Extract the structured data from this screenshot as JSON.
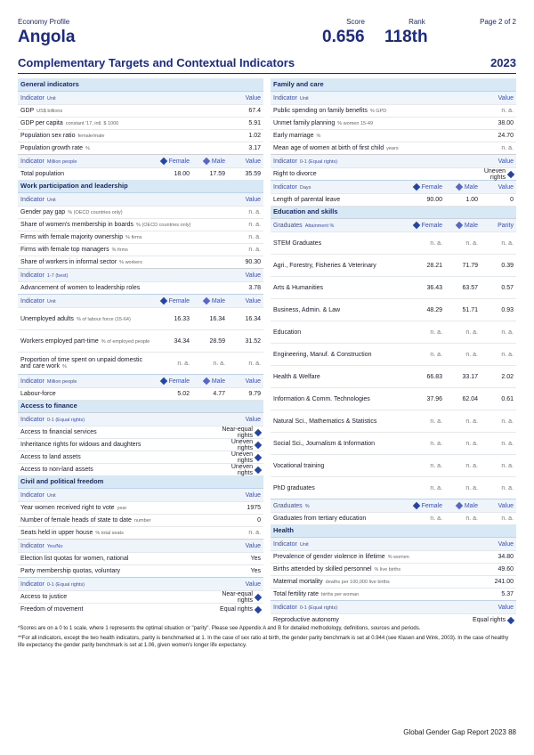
{
  "header": {
    "profile": "Economy Profile",
    "score_lab": "Score",
    "rank_lab": "Rank",
    "page": "Page 2 of 2",
    "country": "Angola",
    "score": "0.656",
    "rank": "118th"
  },
  "section": {
    "title": "Complementary Targets and Contextual Indicators",
    "year": "2023"
  },
  "left": {
    "general": {
      "title": "General indicators",
      "hdr": {
        "i": "Indicator",
        "u": "Unit",
        "v": "Value"
      },
      "rows": [
        [
          "GDP",
          "US$ billions",
          "67.4"
        ],
        [
          "GDP per capita",
          "constant '17, intl. $ 1000",
          "5.91"
        ],
        [
          "Population sex ratio",
          "female/male",
          "1.02"
        ],
        [
          "Population growth rate",
          "%",
          "3.17"
        ]
      ],
      "hdr2": {
        "i": "Indicator",
        "u": "Million people",
        "f": "Female",
        "m": "Male",
        "v": "Value"
      },
      "pop": [
        "Total population",
        "18.00",
        "17.59",
        "35.59"
      ]
    },
    "work": {
      "title": "Work participation and leadership",
      "hdr": {
        "i": "Indicator",
        "u": "Unit",
        "v": "Value"
      },
      "rows": [
        [
          "Gender pay gap",
          "% (OECD countries only)",
          "n. a."
        ],
        [
          "Share of women's membership in boards",
          "% (OECD countries only)",
          "n. a."
        ],
        [
          "Firms with female majority ownership",
          "% firms",
          "n. a."
        ],
        [
          "Firms with female top managers",
          "% firms",
          "n. a."
        ],
        [
          "Share of workers in informal sector",
          "% workers",
          "90.30"
        ]
      ],
      "hdr17": {
        "i": "Indicator",
        "u": "1-7 (best)",
        "v": "Value"
      },
      "adv": [
        "Advancement of women to leadership roles",
        "3.78"
      ],
      "hdr3": {
        "i": "Indicator",
        "u": "Unit",
        "f": "Female",
        "m": "Male",
        "v": "Value"
      },
      "unemp": [
        "Unemployed adults",
        "% of labour force (15-64)",
        "16.33",
        "16.34",
        "16.34"
      ],
      "part": [
        "Workers employed part-time",
        "% of employed people",
        "34.34",
        "28.59",
        "31.52"
      ],
      "unpaid": [
        "Proportion of time spent on unpaid domestic and care work",
        "%",
        "n. a.",
        "n. a.",
        "n. a."
      ],
      "hdr4": {
        "i": "Indicator",
        "u": "Million people",
        "f": "Female",
        "m": "Male",
        "v": "Value"
      },
      "labour": [
        "Labour-force",
        "5.02",
        "4.77",
        "9.79"
      ]
    },
    "finance": {
      "title": "Access to finance",
      "hdr": {
        "i": "Indicator",
        "u": "0-1 (Equal rights)",
        "v": "Value"
      },
      "rows": [
        [
          "Access to financial services",
          "Near-equal rights"
        ],
        [
          "Inheritance rights for widows and daughters",
          "Uneven rights"
        ],
        [
          "Access to land assets",
          "Uneven rights"
        ],
        [
          "Access to non-land assets",
          "Uneven rights"
        ]
      ]
    },
    "civil": {
      "title": "Civil and political freedom",
      "hdr": {
        "i": "Indicator",
        "u": "Unit",
        "v": "Value"
      },
      "rows": [
        [
          "Year women received right to vote",
          "year",
          "1975"
        ],
        [
          "Number of female heads of state to date",
          "number",
          "0"
        ],
        [
          "Seats held in upper house",
          "% total seats",
          "n. a."
        ]
      ],
      "hdr2": {
        "i": "Indicator",
        "u": "Yes/No",
        "v": "Value"
      },
      "rows2": [
        [
          "Election list quotas for women, national",
          "Yes"
        ],
        [
          "Party membership quotas, voluntary",
          "Yes"
        ]
      ],
      "hdr3": {
        "i": "Indicator",
        "u": "0-1 (Equal rights)",
        "v": "Value"
      },
      "rows3": [
        [
          "Access to justice",
          "Near-equal rights"
        ],
        [
          "Freedom of movement",
          "Equal rights"
        ]
      ]
    }
  },
  "right": {
    "family": {
      "title": "Family and care",
      "hdr": {
        "i": "Indicator",
        "u": "Unit",
        "v": "Value"
      },
      "rows": [
        [
          "Public spending on family benefits",
          "% GPD",
          "n. a."
        ],
        [
          "Unmet family planning",
          "% women 15-49",
          "38.00"
        ],
        [
          "Early marriage",
          "%",
          "24.70"
        ],
        [
          "Mean age of women at birth of first child",
          "years",
          "n. a."
        ]
      ],
      "hdr2": {
        "i": "Indicator",
        "u": "0-1 (Equal rights)",
        "v": "Value"
      },
      "divorce": [
        "Right to divorce",
        "Uneven rights"
      ],
      "hdr3": {
        "i": "Indicator",
        "u": "Days",
        "f": "Female",
        "m": "Male",
        "v": "Value"
      },
      "leave": [
        "Length of parental leave",
        "90.00",
        "1.00",
        "0"
      ]
    },
    "edu": {
      "title": "Education and skills",
      "hdr": {
        "i": "Graduates",
        "u": "Attainment %",
        "f": "Female",
        "m": "Male",
        "v": "Parity"
      },
      "rows": [
        [
          "STEM Graduates",
          "n. a.",
          "n. a.",
          "n. a."
        ],
        [
          "Agri., Forestry, Fisheries & Veterinary",
          "28.21",
          "71.79",
          "0.39"
        ],
        [
          "Arts & Humanities",
          "36.43",
          "63.57",
          "0.57"
        ],
        [
          "Business, Admin. & Law",
          "48.29",
          "51.71",
          "0.93"
        ],
        [
          "Education",
          "n. a.",
          "n. a.",
          "n. a."
        ],
        [
          "Engineering, Manuf. & Construction",
          "n. a.",
          "n. a.",
          "n. a."
        ],
        [
          "Health & Welfare",
          "66.83",
          "33.17",
          "2.02"
        ],
        [
          "Information & Comm. Technologies",
          "37.96",
          "62.04",
          "0.61"
        ],
        [
          "Natural Sci., Mathematics & Statistics",
          "n. a.",
          "n. a.",
          "n. a."
        ],
        [
          "Social Sci., Journalism & Information",
          "n. a.",
          "n. a.",
          "n. a."
        ],
        [
          "Vocational training",
          "n. a.",
          "n. a.",
          "n. a."
        ],
        [
          "PhD graduates",
          "n. a.",
          "n. a.",
          "n. a."
        ]
      ],
      "hdr2": {
        "i": "Graduates",
        "u": "%",
        "f": "Female",
        "m": "Male",
        "v": "Value"
      },
      "tert": [
        "Graduates from tertiary education",
        "n. a.",
        "n. a.",
        "n. a."
      ]
    },
    "health": {
      "title": "Health",
      "hdr": {
        "i": "Indicator",
        "u": "Unit",
        "v": "Value"
      },
      "rows": [
        [
          "Prevalence of gender violence in lifetime",
          "% women",
          "34.80"
        ],
        [
          "Births attended by skilled personnel",
          "% live births",
          "49.60"
        ],
        [
          "Maternal mortality",
          "deaths per 100,000 live births",
          "241.00"
        ],
        [
          "Total fertility rate",
          "births per woman",
          "5.37"
        ]
      ],
      "hdr2": {
        "i": "Indicator",
        "u": "0-1 (Equal rights)",
        "v": "Value"
      },
      "repro": [
        "Reproductive autonomy",
        "Equal rights"
      ]
    }
  },
  "footnotes": {
    "a": "*Scores are on a 0 to 1 scale, where 1 represents the optimal situation or \"parity\". Please see Appendix A and B for detailed methodology, definitions, sources and periods.",
    "b": "**For all indicators, except the two health indicators, parity is benchmarked at 1. In the case of sex ratio at birth, the gender parity benchmark is set at 0.944 (see Klasen and Wink, 2003). In the case of healthy life expectancy the gender parity benchmark is set at 1.06, given women's longer life expectancy."
  },
  "page_footer": "Global Gender Gap Report 2023    88"
}
